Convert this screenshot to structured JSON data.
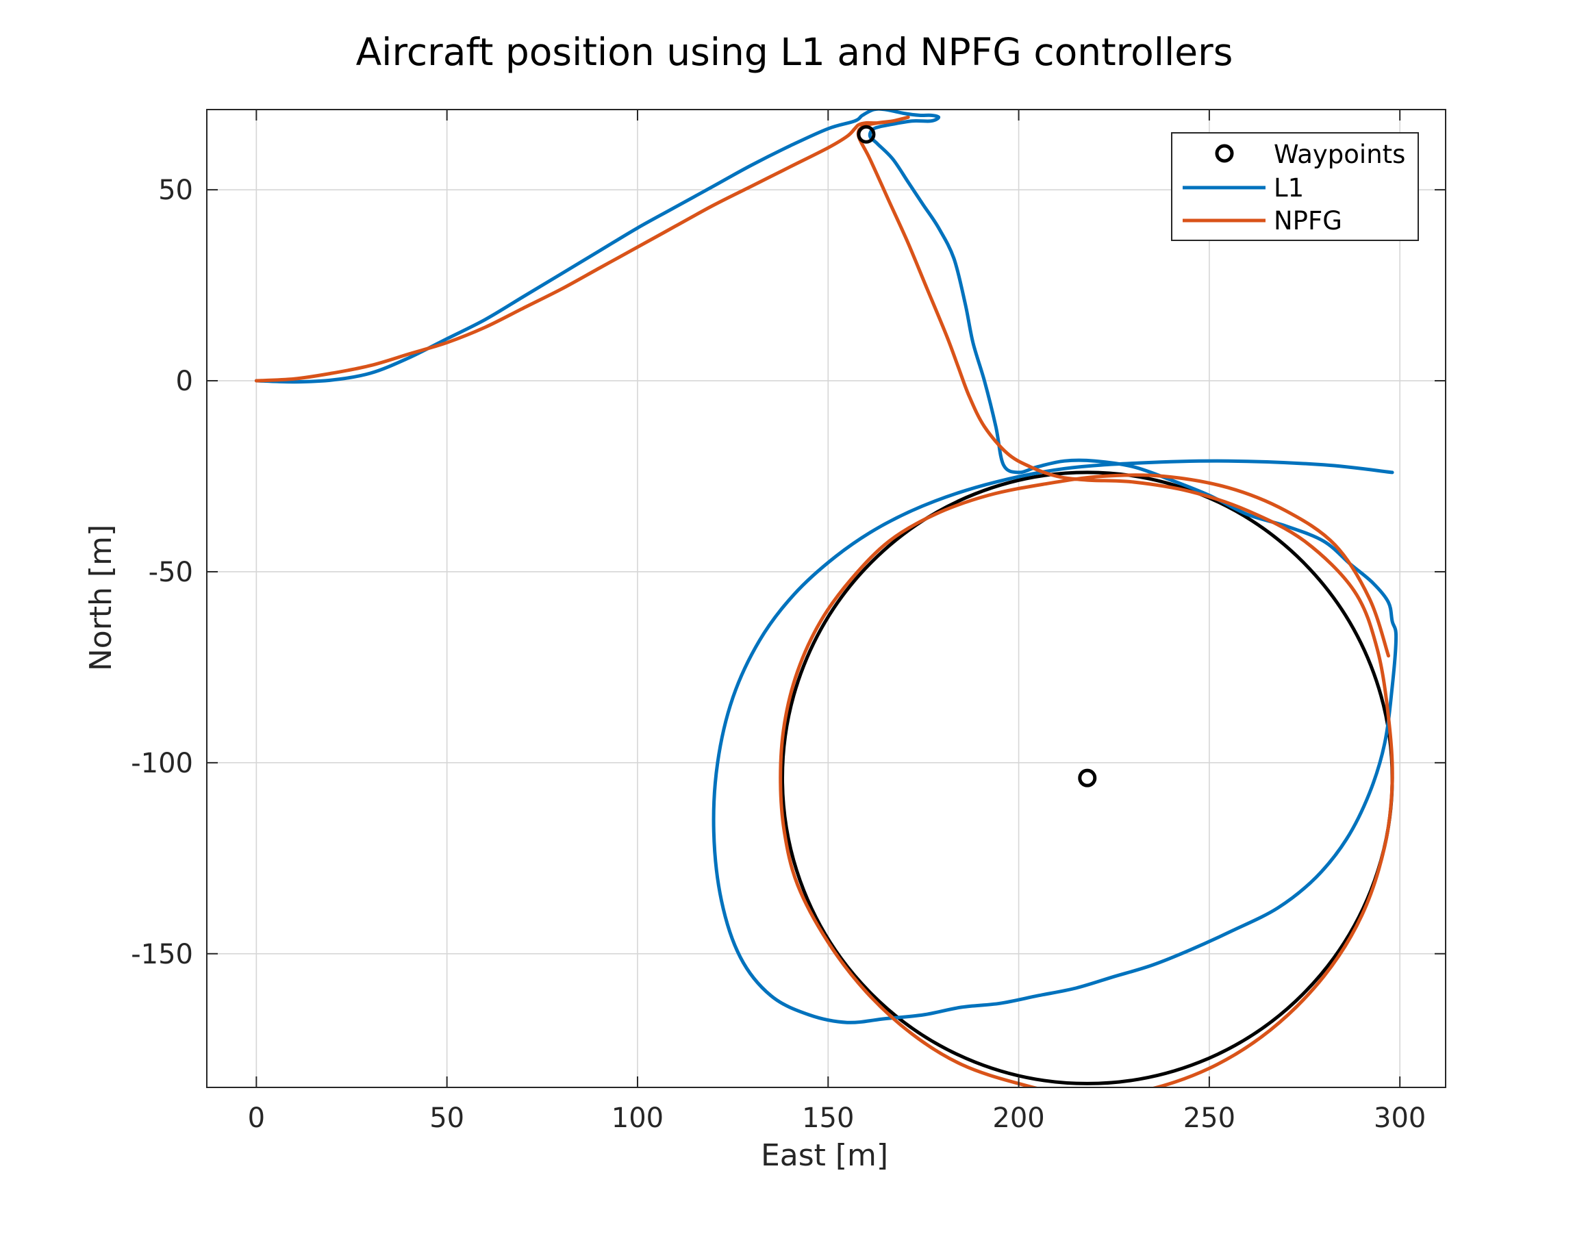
{
  "chart_data": {
    "type": "line",
    "title": "Aircraft position using L1 and NPFG controllers",
    "xlabel": "East [m]",
    "ylabel": "North [m]",
    "xlim": [
      -13,
      312
    ],
    "ylim": [
      -185,
      71
    ],
    "xticks": [
      0,
      50,
      100,
      150,
      200,
      250,
      300
    ],
    "yticks": [
      50,
      0,
      -50,
      -100,
      -150
    ],
    "xtick_labels": [
      "0",
      "50",
      "100",
      "150",
      "200",
      "250",
      "300"
    ],
    "ytick_labels": [
      "50",
      "0",
      "-50",
      "-100",
      "-150"
    ],
    "grid": true,
    "legend_position": "top-right",
    "colors": {
      "l1": "#0072BD",
      "npfg": "#D95319",
      "waypoints": "#000000",
      "loiter_circle": "#000000"
    },
    "waypoints": {
      "name": "Waypoints",
      "x": [
        160,
        218
      ],
      "y": [
        64.5,
        -104
      ]
    },
    "loiter_circle": {
      "center": [
        218,
        -104
      ],
      "radius": 80
    },
    "series": [
      {
        "name": "L1",
        "x": [
          0,
          10,
          20,
          30,
          40,
          50,
          60,
          70,
          80,
          90,
          100,
          110,
          120,
          130,
          140,
          150,
          157,
          159,
          162,
          165,
          170,
          174,
          177,
          179,
          177,
          172,
          166,
          162,
          161,
          163,
          167,
          171,
          175,
          179,
          183,
          186,
          188,
          191,
          194,
          196,
          200,
          205,
          212,
          220,
          230,
          240,
          250,
          260,
          270,
          280,
          287,
          293,
          297,
          298,
          299,
          298,
          296,
          292,
          286,
          278,
          268,
          256,
          245,
          235,
          225,
          215,
          205,
          195,
          185,
          175,
          165,
          155,
          145,
          135,
          127,
          122,
          120,
          121,
          125,
          132,
          141,
          152,
          164,
          178,
          194,
          212,
          232,
          255,
          280,
          298
        ],
        "y": [
          0,
          -0.3,
          0.2,
          2,
          6,
          11,
          16,
          22,
          28,
          34,
          40,
          45.5,
          51,
          56.5,
          61.5,
          66,
          68,
          69.5,
          71,
          71,
          70,
          69.5,
          69.5,
          69,
          68,
          68,
          67,
          66,
          64,
          62,
          58,
          52,
          46,
          40,
          32,
          20,
          10,
          0,
          -12,
          -22,
          -24,
          -22.5,
          -21,
          -21,
          -22.5,
          -26,
          -30,
          -35,
          -38,
          -42,
          -48,
          -53,
          -58,
          -63,
          -67,
          -80,
          -95,
          -108,
          -120,
          -130,
          -138,
          -144,
          -149,
          -153,
          -156,
          -159,
          -161,
          -163,
          -164,
          -166,
          -167,
          -168,
          -166,
          -161,
          -151,
          -136,
          -118,
          -100,
          -83,
          -68,
          -56,
          -46,
          -38,
          -31.5,
          -26.5,
          -23,
          -21.5,
          -21,
          -22,
          -24
        ]
      },
      {
        "name": "NPFG",
        "x": [
          0,
          10,
          20,
          30,
          40,
          50,
          60,
          70,
          80,
          90,
          100,
          110,
          120,
          130,
          140,
          150,
          155,
          157,
          158,
          160,
          163,
          167,
          171,
          167,
          163,
          159,
          158,
          161,
          166,
          171,
          176,
          181,
          184,
          187,
          191,
          197,
          203,
          210,
          218,
          230,
          245,
          260,
          275,
          288,
          294,
          297,
          298,
          296,
          290,
          280,
          266,
          250,
          232,
          215,
          200,
          185,
          172,
          160,
          150,
          142,
          138.5,
          137.5,
          138.5,
          142,
          148,
          156,
          166,
          178,
          192,
          207,
          222,
          238,
          255,
          270,
          283,
          292,
          297
        ],
        "y": [
          0,
          0.5,
          2,
          4,
          7,
          10,
          14,
          19,
          24,
          29.5,
          35,
          40.5,
          46,
          51,
          56,
          61,
          64,
          66,
          67,
          67.5,
          67.5,
          68,
          69,
          68,
          67.5,
          66.5,
          64,
          58,
          47,
          36,
          24,
          12,
          4,
          -4,
          -12,
          -19,
          -22.5,
          -25,
          -26,
          -26.5,
          -29,
          -34,
          -42,
          -55,
          -70,
          -88,
          -105,
          -122,
          -140,
          -156,
          -170,
          -180,
          -186,
          -187,
          -184,
          -179,
          -171,
          -160,
          -147,
          -132,
          -118,
          -104,
          -90,
          -76,
          -63,
          -52,
          -42,
          -35,
          -30,
          -27,
          -25,
          -25,
          -28,
          -34,
          -43,
          -57,
          -72
        ]
      }
    ]
  }
}
